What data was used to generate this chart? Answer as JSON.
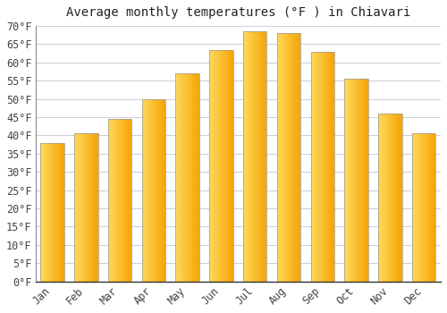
{
  "title": "Average monthly temperatures (°F ) in Chiavari",
  "months": [
    "Jan",
    "Feb",
    "Mar",
    "Apr",
    "May",
    "Jun",
    "Jul",
    "Aug",
    "Sep",
    "Oct",
    "Nov",
    "Dec"
  ],
  "values": [
    38,
    40.5,
    44.5,
    50,
    57,
    63.5,
    68.5,
    68,
    63,
    55.5,
    46,
    40.5
  ],
  "bar_color_left": "#FFD04A",
  "bar_color_right": "#F5A800",
  "background_color": "#FFFFFF",
  "plot_bg_color": "#FFFFFF",
  "grid_color": "#CCCCDD",
  "ylim": [
    0,
    70
  ],
  "ytick_step": 5,
  "title_fontsize": 10,
  "tick_fontsize": 8.5,
  "bar_width": 0.7,
  "bar_edge_color": "#999999",
  "bar_edge_width": 0.5
}
